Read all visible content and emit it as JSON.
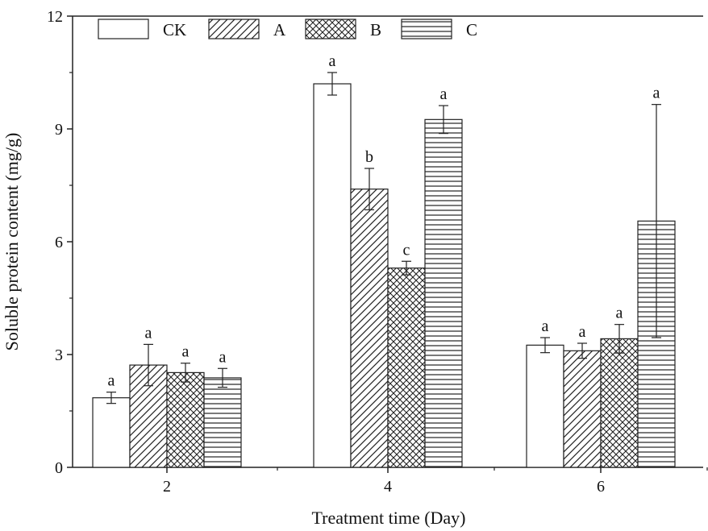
{
  "chart_data": {
    "type": "bar",
    "xlabel": "Treatment time (Day)",
    "ylabel": "Soluble protein content (mg/g)",
    "ylim": [
      0,
      12
    ],
    "yticks": [
      0,
      3,
      6,
      9,
      12
    ],
    "categories": [
      "2",
      "4",
      "6"
    ],
    "legend_position": "top-left",
    "series": [
      {
        "name": "CK",
        "pattern": "none",
        "values": [
          1.85,
          10.2,
          3.25
        ],
        "errors": [
          0.15,
          0.3,
          0.2
        ],
        "letters": [
          "a",
          "a",
          "a"
        ]
      },
      {
        "name": "A",
        "pattern": "diagonal",
        "values": [
          2.72,
          7.4,
          3.1
        ],
        "errors": [
          0.55,
          0.55,
          0.2
        ],
        "letters": [
          "a",
          "b",
          "a"
        ]
      },
      {
        "name": "B",
        "pattern": "crosshatch",
        "values": [
          2.52,
          5.3,
          3.42
        ],
        "errors": [
          0.25,
          0.18,
          0.38
        ],
        "letters": [
          "a",
          "c",
          "a"
        ]
      },
      {
        "name": "C",
        "pattern": "horizontal",
        "values": [
          2.38,
          9.25,
          6.55
        ],
        "errors": [
          0.25,
          0.37,
          3.1
        ],
        "letters": [
          "a",
          "a",
          "a"
        ]
      }
    ],
    "grid": false,
    "colors": {
      "stroke": "#222222",
      "fill": "#ffffff"
    }
  }
}
